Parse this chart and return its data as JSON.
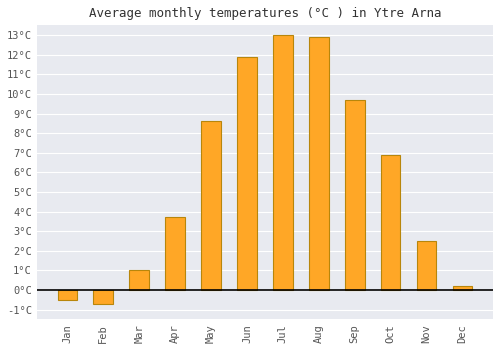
{
  "title": "Average monthly temperatures (°C ) in Ytre Arna",
  "months": [
    "Jan",
    "Feb",
    "Mar",
    "Apr",
    "May",
    "Jun",
    "Jul",
    "Aug",
    "Sep",
    "Oct",
    "Nov",
    "Dec"
  ],
  "values": [
    -0.5,
    -0.7,
    1.0,
    3.7,
    8.6,
    11.9,
    13.0,
    12.9,
    9.7,
    6.9,
    2.5,
    0.2
  ],
  "bar_color": "#FFA726",
  "bar_edge_color": "#B8860B",
  "ylim": [
    -1.5,
    13.5
  ],
  "yticks": [
    -1,
    0,
    1,
    2,
    3,
    4,
    5,
    6,
    7,
    8,
    9,
    10,
    11,
    12,
    13
  ],
  "fig_background": "#ffffff",
  "plot_background": "#e8eaf0",
  "grid_color": "#ffffff",
  "title_fontsize": 9,
  "tick_fontsize": 7.5,
  "font_family": "monospace",
  "bar_width": 0.55
}
